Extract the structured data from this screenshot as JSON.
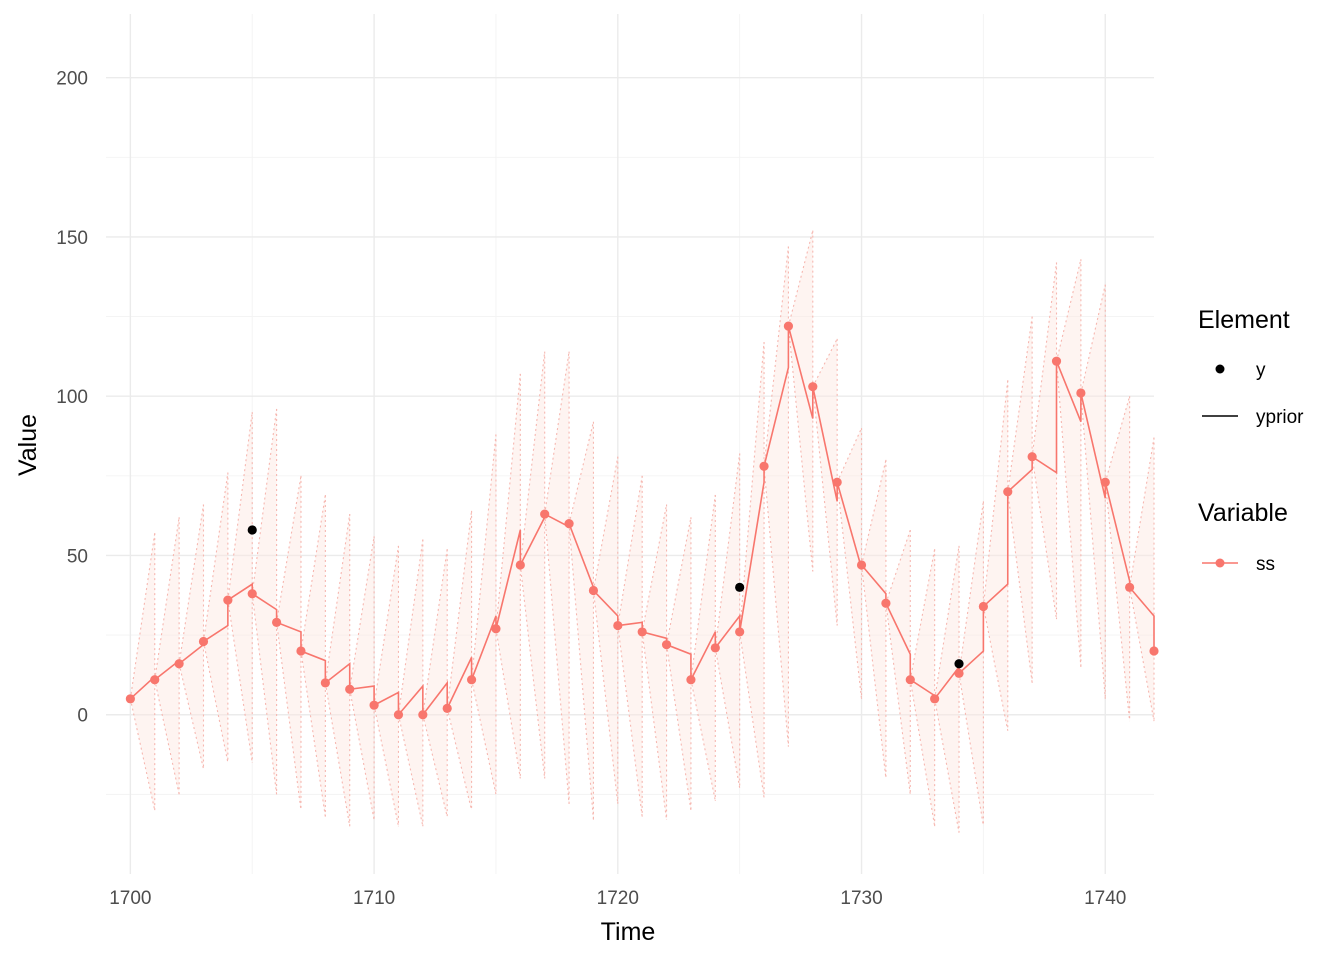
{
  "chart_data": {
    "type": "line",
    "title": "",
    "xlabel": "Time",
    "ylabel": "Value",
    "xlim": [
      1699,
      1742
    ],
    "ylim": [
      -50,
      220
    ],
    "xticks": [
      1700,
      1710,
      1720,
      1730,
      1740
    ],
    "yticks": [
      0,
      50,
      100,
      150,
      200
    ],
    "grid": true,
    "legend_placement": "right",
    "colors": {
      "ss": "#f8766d",
      "y": "#000000",
      "band_fill": "#fde7e1",
      "band_line": "#f6b7b0"
    },
    "legend": {
      "element": {
        "title": "Element",
        "items": [
          {
            "label": "y",
            "symbol": "point"
          },
          {
            "label": "yprior",
            "symbol": "line"
          }
        ]
      },
      "variable": {
        "title": "Variable",
        "items": [
          {
            "label": "ss",
            "symbol": "point-line"
          }
        ]
      }
    },
    "series": [
      {
        "name": "ss",
        "x": [
          1700,
          1701,
          1702,
          1703,
          1704,
          1705,
          1706,
          1707,
          1708,
          1709,
          1710,
          1711,
          1712,
          1713,
          1714,
          1715,
          1716,
          1717,
          1718,
          1719,
          1720,
          1721,
          1722,
          1723,
          1724,
          1725,
          1726,
          1727,
          1728,
          1729,
          1730,
          1731,
          1732,
          1733,
          1734,
          1735,
          1736,
          1737,
          1738,
          1739,
          1740,
          1741,
          1742
        ],
        "filtered": [
          5,
          11,
          16,
          23,
          36,
          38,
          29,
          20,
          10,
          8,
          3,
          0,
          0,
          2,
          11,
          27,
          47,
          63,
          60,
          39,
          28,
          26,
          22,
          11,
          21,
          26,
          78,
          122,
          103,
          73,
          47,
          35,
          11,
          5,
          13,
          34,
          70,
          81,
          111,
          101,
          73,
          40,
          20
        ],
        "prior": [
          5,
          12,
          17,
          22,
          28,
          41,
          33,
          26,
          17,
          16,
          9,
          7,
          9,
          10,
          18,
          31,
          58,
          62,
          59,
          40,
          31,
          29,
          24,
          19,
          26,
          31,
          73,
          109,
          93,
          67,
          46,
          38,
          19,
          6,
          15,
          20,
          41,
          77,
          76,
          92,
          68,
          42,
          31
        ],
        "band_lower": [
          -4,
          -30,
          -25,
          -17,
          -15,
          -15,
          -25,
          -30,
          -32,
          -35,
          -33,
          -35,
          -35,
          -32,
          -30,
          -25,
          -20,
          -20,
          -28,
          -33,
          -28,
          -32,
          -33,
          -30,
          -27,
          -23,
          -26,
          -10,
          45,
          28,
          5,
          -20,
          -25,
          -35,
          -37,
          -35,
          -5,
          10,
          30,
          15,
          5,
          -2,
          -2
        ],
        "band_upper": [
          36,
          57,
          62,
          66,
          76,
          95,
          96,
          75,
          69,
          63,
          56,
          53,
          55,
          52,
          64,
          88,
          107,
          114,
          114,
          92,
          81,
          75,
          66,
          62,
          69,
          82,
          117,
          147,
          152,
          118,
          90,
          80,
          58,
          52,
          53,
          67,
          105,
          125,
          142,
          143,
          135,
          100,
          87
        ]
      },
      {
        "name": "y",
        "x": [
          1705,
          1725,
          1734
        ],
        "values": [
          58,
          40,
          16
        ]
      }
    ]
  }
}
